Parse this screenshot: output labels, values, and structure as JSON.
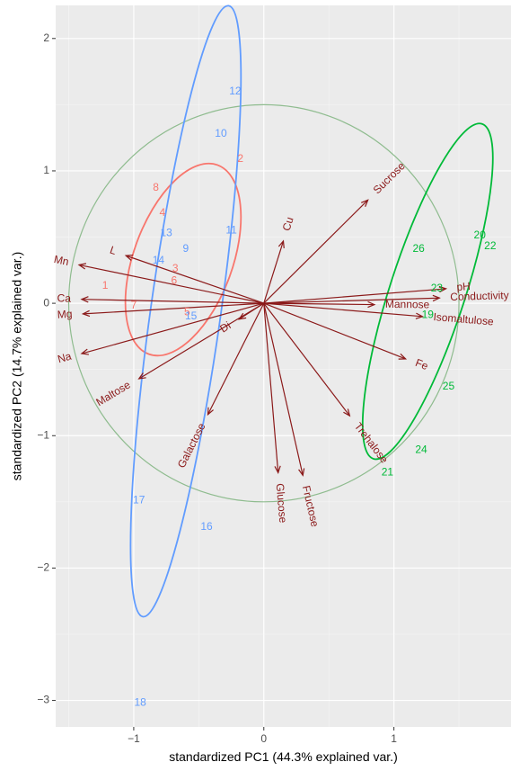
{
  "chart_data": {
    "type": "scatter",
    "subtype": "pca-biplot",
    "xlabel": "standardized PC1 (44.3% explained var.)",
    "ylabel": "standardized PC2 (14.7% explained var.)",
    "xlim": [
      -1.6,
      1.9
    ],
    "ylim": [
      -3.2,
      2.25
    ],
    "x_ticks": [
      -1,
      0,
      1
    ],
    "y_ticks": [
      2,
      1,
      0,
      -1,
      -2,
      -3
    ],
    "grid": true,
    "background": "#ebebeb",
    "correlation_circle": {
      "radius": 1.5,
      "color": "#8fbc8f"
    },
    "vector_color": "#8b1a1a",
    "variables": [
      {
        "name": "Mn",
        "x": -1.42,
        "y": 0.29
      },
      {
        "name": "Ca",
        "x": -1.4,
        "y": 0.03
      },
      {
        "name": "Mg",
        "x": -1.39,
        "y": -0.08
      },
      {
        "name": "Na",
        "x": -1.4,
        "y": -0.38
      },
      {
        "name": "L",
        "x": -1.06,
        "y": 0.36
      },
      {
        "name": "Maltose",
        "x": -0.96,
        "y": -0.57
      },
      {
        "name": "Galactose",
        "x": -0.43,
        "y": -0.84
      },
      {
        "name": "Glucose",
        "x": 0.11,
        "y": -1.28
      },
      {
        "name": "Fructose",
        "x": 0.3,
        "y": -1.3
      },
      {
        "name": "Trehalose",
        "x": 0.66,
        "y": -0.85
      },
      {
        "name": "Fe",
        "x": 1.09,
        "y": -0.42
      },
      {
        "name": "Isomaltulose",
        "x": 1.22,
        "y": -0.1
      },
      {
        "name": "Mannose",
        "x": 0.85,
        "y": -0.01
      },
      {
        "name": "pH",
        "x": 1.4,
        "y": 0.11
      },
      {
        "name": "Conductivity",
        "x": 1.35,
        "y": 0.04
      },
      {
        "name": "Sucrose",
        "x": 0.8,
        "y": 0.78
      },
      {
        "name": "Cu",
        "x": 0.15,
        "y": 0.47
      },
      {
        "name": "Di",
        "x": -0.19,
        "y": -0.12
      }
    ],
    "groups": [
      {
        "color": "#f8766d",
        "ellipse": {
          "cx": -0.62,
          "cy": 0.33,
          "rx": 0.38,
          "ry": 0.76,
          "rot": 20
        }
      },
      {
        "color": "#619cff",
        "ellipse": {
          "cx": -0.6,
          "cy": -0.06,
          "rx": 0.27,
          "ry": 2.33,
          "rot": 8
        }
      },
      {
        "color": "#00ba38",
        "ellipse": {
          "cx": 1.26,
          "cy": 0.09,
          "rx": 0.29,
          "ry": 1.33,
          "rot": 18
        }
      }
    ],
    "observations": [
      {
        "label": "1",
        "x": -1.22,
        "y": 0.13,
        "group": 0
      },
      {
        "label": "2",
        "x": -0.18,
        "y": 1.09,
        "group": 0
      },
      {
        "label": "3",
        "x": -0.68,
        "y": 0.26,
        "group": 0
      },
      {
        "label": "4",
        "x": -0.78,
        "y": 0.68,
        "group": 0
      },
      {
        "label": "5",
        "x": -0.59,
        "y": -0.07,
        "group": 0
      },
      {
        "label": "6",
        "x": -0.69,
        "y": 0.17,
        "group": 0
      },
      {
        "label": "7",
        "x": -1.0,
        "y": -0.02,
        "group": 0
      },
      {
        "label": "8",
        "x": -0.83,
        "y": 0.87,
        "group": 0
      },
      {
        "label": "9",
        "x": -0.6,
        "y": 0.41,
        "group": 1
      },
      {
        "label": "10",
        "x": -0.33,
        "y": 1.28,
        "group": 1
      },
      {
        "label": "11",
        "x": -0.25,
        "y": 0.55,
        "group": 1
      },
      {
        "label": "12",
        "x": -0.22,
        "y": 1.6,
        "group": 1
      },
      {
        "label": "13",
        "x": -0.75,
        "y": 0.53,
        "group": 1
      },
      {
        "label": "14",
        "x": -0.81,
        "y": 0.32,
        "group": 1
      },
      {
        "label": "15",
        "x": -0.56,
        "y": -0.1,
        "group": 1
      },
      {
        "label": "16",
        "x": -0.44,
        "y": -1.69,
        "group": 1
      },
      {
        "label": "17",
        "x": -0.96,
        "y": -1.49,
        "group": 1
      },
      {
        "label": "18",
        "x": -0.95,
        "y": -3.02,
        "group": 1
      },
      {
        "label": "19",
        "x": 1.26,
        "y": -0.09,
        "group": 2
      },
      {
        "label": "20",
        "x": 1.66,
        "y": 0.51,
        "group": 2
      },
      {
        "label": "21",
        "x": 0.95,
        "y": -1.28,
        "group": 2
      },
      {
        "label": "22",
        "x": 1.74,
        "y": 0.43,
        "group": 2
      },
      {
        "label": "23",
        "x": 1.33,
        "y": 0.11,
        "group": 2
      },
      {
        "label": "24",
        "x": 1.21,
        "y": -1.11,
        "group": 2
      },
      {
        "label": "25",
        "x": 1.42,
        "y": -0.63,
        "group": 2
      },
      {
        "label": "26",
        "x": 1.19,
        "y": 0.41,
        "group": 2
      }
    ]
  }
}
